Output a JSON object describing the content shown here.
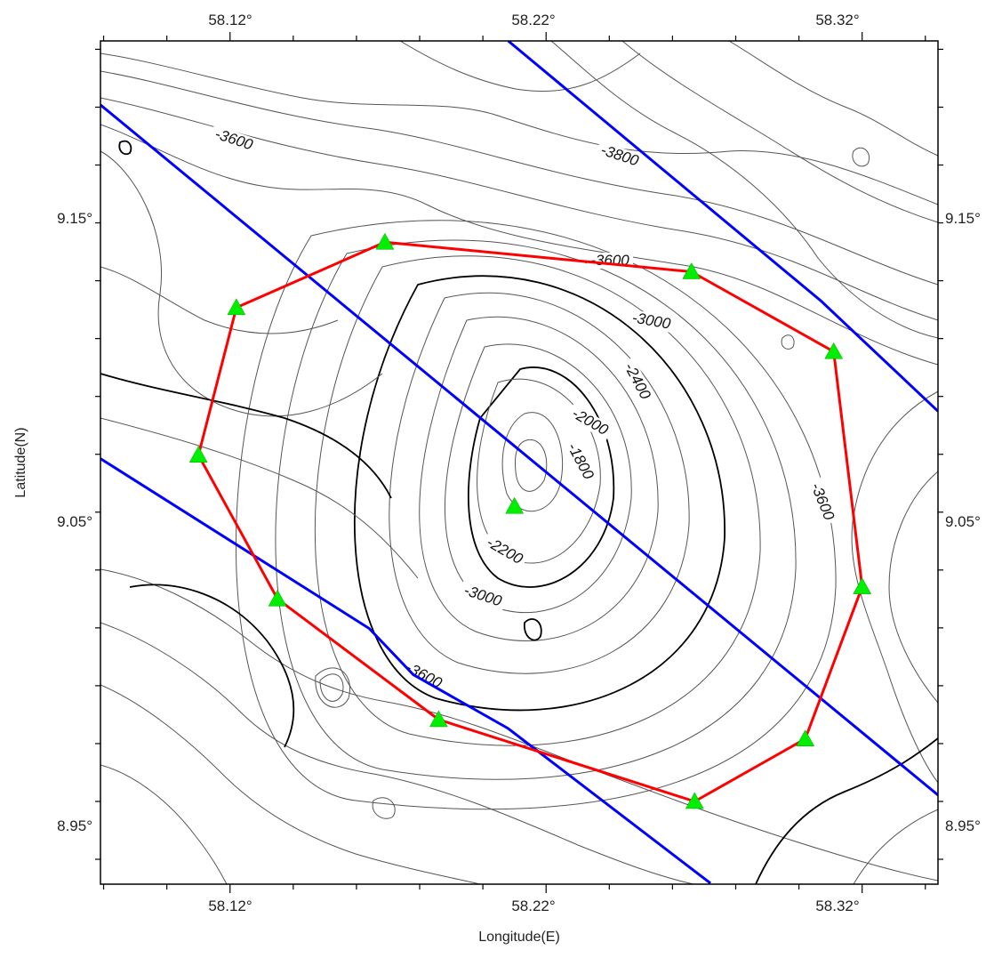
{
  "chart_data": {
    "type": "map",
    "xlabel": "Longitude(E)",
    "ylabel": "Latitude(N)",
    "x_ticks": [
      "58.12°",
      "58.22°",
      "58.32°"
    ],
    "y_ticks": [
      "9.15°",
      "9.05°",
      "8.95°"
    ],
    "x_tick_values": [
      58.12,
      58.22,
      58.32
    ],
    "y_tick_values": [
      9.15,
      9.05,
      8.95
    ],
    "xlim": [
      58.079,
      58.344
    ],
    "ylim": [
      8.9314,
      9.2229
    ],
    "contour_labels": [
      "-3800",
      "-3600",
      "-3600",
      "-3000",
      "-2400",
      "-2000",
      "-1800",
      "-2200",
      "-3000",
      "-3600",
      "-3600"
    ],
    "stations": [
      {
        "lon": 58.21,
        "lat": 9.062
      },
      {
        "lon": 58.169,
        "lat": 9.1533
      },
      {
        "lon": 58.266,
        "lat": 9.1431
      },
      {
        "lon": 58.311,
        "lat": 9.1155
      },
      {
        "lon": 58.32,
        "lat": 9.0342
      },
      {
        "lon": 58.302,
        "lat": 8.9816
      },
      {
        "lon": 58.267,
        "lat": 8.96
      },
      {
        "lon": 58.186,
        "lat": 8.9883
      },
      {
        "lon": 58.135,
        "lat": 9.03
      },
      {
        "lon": 58.11,
        "lat": 9.0797
      },
      {
        "lon": 58.122,
        "lat": 9.1307
      }
    ],
    "survey_polygon": [
      {
        "lon": 58.169,
        "lat": 9.1533
      },
      {
        "lon": 58.266,
        "lat": 9.1431
      },
      {
        "lon": 58.311,
        "lat": 9.1155
      },
      {
        "lon": 58.32,
        "lat": 9.0342
      },
      {
        "lon": 58.302,
        "lat": 8.9816
      },
      {
        "lon": 58.267,
        "lat": 8.96
      },
      {
        "lon": 58.186,
        "lat": 8.9883
      },
      {
        "lon": 58.135,
        "lat": 9.03
      },
      {
        "lon": 58.11,
        "lat": 9.0797
      },
      {
        "lon": 58.122,
        "lat": 9.1307
      },
      {
        "lon": 58.169,
        "lat": 9.1533
      }
    ],
    "lines": [
      {
        "name": "",
        "color": "#0000ff",
        "points": [
          {
            "lon": 58.079,
            "lat": 9.2008
          },
          {
            "lon": 58.344,
            "lat": 8.9622
          }
        ]
      },
      {
        "name": "",
        "color": "#0000ff",
        "points": [
          {
            "lon": 58.079,
            "lat": 9.0785
          },
          {
            "lon": 58.164,
            "lat": 9.0198
          },
          {
            "lon": 58.178,
            "lat": 9.0038
          },
          {
            "lon": 58.208,
            "lat": 8.9852
          },
          {
            "lon": 58.272,
            "lat": 8.9317
          }
        ]
      },
      {
        "name": "",
        "color": "#0000ff",
        "points": [
          {
            "lon": 58.208,
            "lat": 9.2229
          },
          {
            "lon": 58.307,
            "lat": 9.133
          },
          {
            "lon": 58.344,
            "lat": 9.0949
          }
        ]
      }
    ],
    "colors": {
      "survey": "#ff0000",
      "line": "#0000ff",
      "station": "#00ee00",
      "contour": "#555555",
      "index_contour": "#000000"
    }
  }
}
